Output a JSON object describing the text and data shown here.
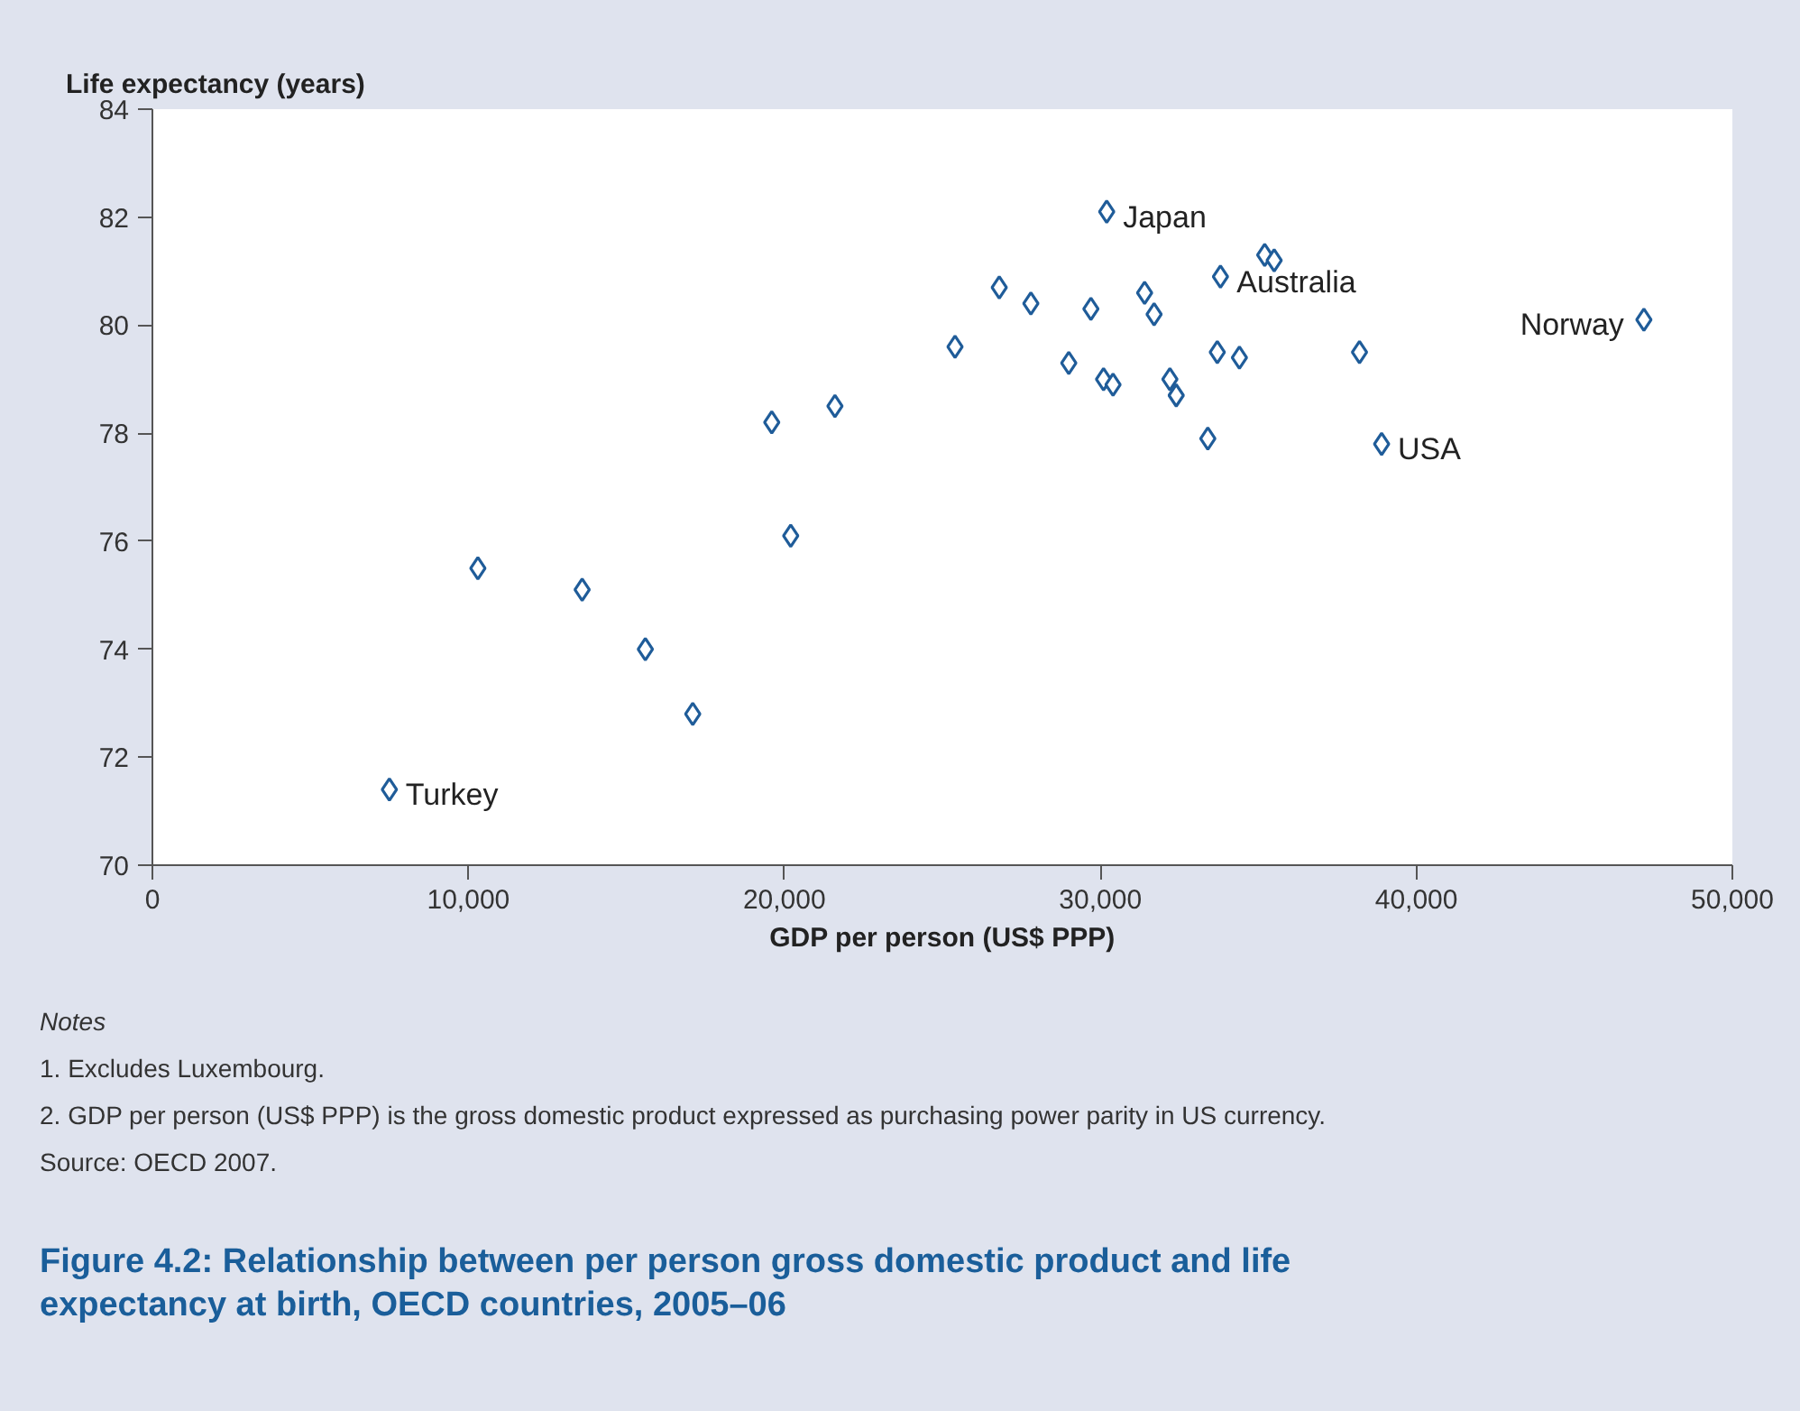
{
  "chart_data": {
    "type": "scatter",
    "title": "Figure 4.2: Relationship between per person gross domestic product and life expectancy at birth, OECD countries, 2005–06",
    "xlabel": "GDP per person (US$ PPP)",
    "ylabel": "Life expectancy (years)",
    "x": [
      7500,
      10300,
      13600,
      15600,
      17100,
      19600,
      20200,
      21600,
      25400,
      26800,
      27800,
      29000,
      29700,
      30200,
      30100,
      30400,
      31400,
      31700,
      32200,
      32400,
      33400,
      33800,
      33700,
      34400,
      35200,
      35500,
      38200,
      38900,
      47200
    ],
    "series": [
      {
        "color": "#1f5c99",
        "values": [
          71.4,
          75.5,
          75.1,
          74.0,
          72.8,
          78.2,
          76.1,
          78.5,
          79.6,
          80.7,
          80.4,
          79.3,
          80.3,
          82.1,
          79.0,
          78.9,
          80.6,
          80.2,
          79.0,
          78.7,
          77.9,
          80.9,
          79.5,
          79.4,
          81.3,
          81.2,
          79.5,
          77.8,
          80.1
        ]
      }
    ],
    "marker": "diamond",
    "xlim": [
      0,
      50000
    ],
    "ylim": [
      70,
      84
    ],
    "xticks": [
      0,
      {
        "value": 10000,
        "label": "10,000"
      },
      {
        "value": 20000,
        "label": "20,000"
      },
      {
        "value": 30000,
        "label": "30,000"
      },
      {
        "value": 40000,
        "label": "40,000"
      },
      {
        "value": 50000,
        "label": "50,000"
      }
    ],
    "yticks": [
      70,
      72,
      74,
      76,
      78,
      80,
      82,
      84
    ],
    "grid": false,
    "annotations": [
      {
        "text": "Turkey",
        "x": 7500,
        "y": 71.4
      },
      {
        "text": "Japan",
        "x": 30200,
        "y": 82.1
      },
      {
        "text": "Australia",
        "x": 33800,
        "y": 80.9
      },
      {
        "text": "USA",
        "x": 38900,
        "y": 77.8
      },
      {
        "text": "Norway",
        "x": 47200,
        "y": 80.1
      },
      "Notes",
      "1.  Excludes Luxembourg.",
      "2.  GDP per person (US$ PPP) is the gross domestic product expressed as purchasing power parity in US currency.",
      "Source: OECD 2007."
    ]
  }
}
